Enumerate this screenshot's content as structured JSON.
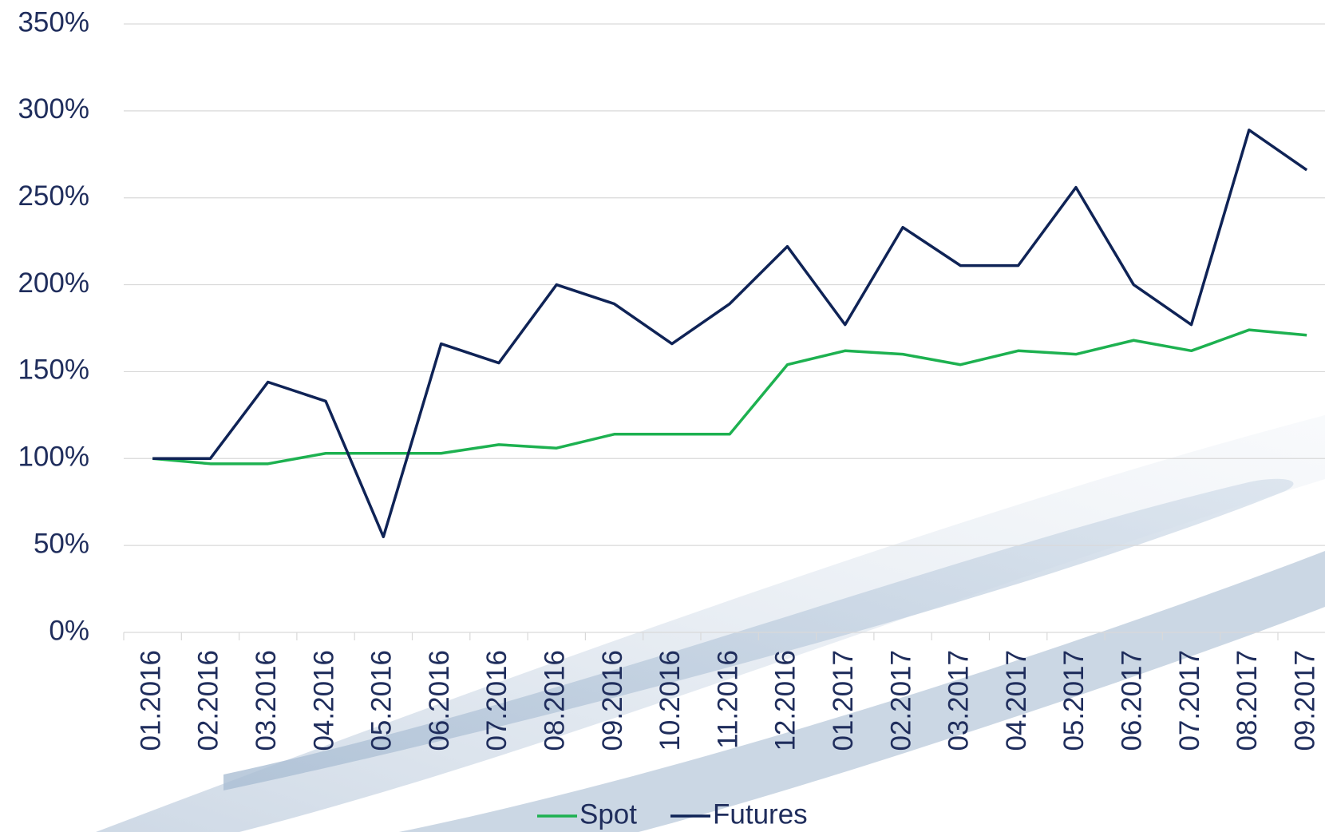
{
  "chart_data": {
    "type": "line",
    "categories": [
      "01.2016",
      "02.2016",
      "03.2016",
      "04.2016",
      "05.2016",
      "06.2016",
      "07.2016",
      "08.2016",
      "09.2016",
      "10.2016",
      "11.2016",
      "12.2016",
      "01.2017",
      "02.2017",
      "03.2017",
      "04.2017",
      "05.2017",
      "06.2017",
      "07.2017",
      "08.2017",
      "09.2017"
    ],
    "series": [
      {
        "name": "Spot",
        "color": "#1db150",
        "values": [
          100,
          97,
          97,
          103,
          103,
          103,
          108,
          106,
          114,
          114,
          114,
          154,
          162,
          160,
          154,
          162,
          160,
          168,
          162,
          174,
          171
        ]
      },
      {
        "name": "Futures",
        "color": "#0f2356",
        "values": [
          100,
          100,
          144,
          133,
          55,
          166,
          155,
          200,
          189,
          166,
          189,
          222,
          177,
          233,
          211,
          211,
          256,
          200,
          177,
          289,
          266
        ]
      }
    ],
    "ylim": [
      0,
      350
    ],
    "yticks": [
      {
        "value": 0,
        "label": "0%"
      },
      {
        "value": 50,
        "label": "50%"
      },
      {
        "value": 100,
        "label": "100%"
      },
      {
        "value": 150,
        "label": "150%"
      },
      {
        "value": 200,
        "label": "200%"
      },
      {
        "value": 250,
        "label": "250%"
      },
      {
        "value": 300,
        "label": "300%"
      },
      {
        "value": 350,
        "label": "350%"
      }
    ],
    "grid": true,
    "legend": "bottom"
  }
}
